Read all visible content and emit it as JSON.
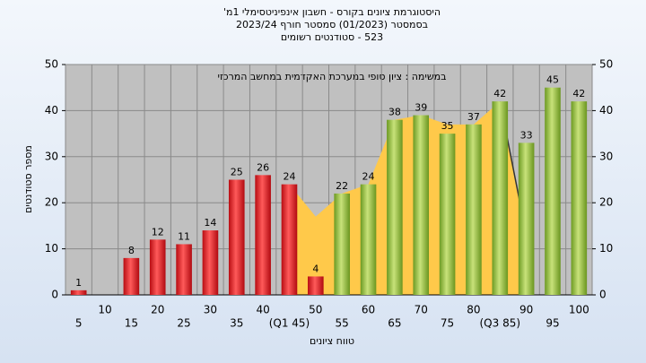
{
  "chart_data": {
    "type": "bar",
    "title": "היסטוגרמת ציונים בקורס - חשבון אינפיניטסימלי 1מ'",
    "subtitle": "בסמסטר (01/2023) סמסטר חורף 2023/24",
    "subtitle2": "523 - סטודנטים רשומים",
    "annotation": "במשימה : ציון סופי במערכת האקדמית במחשב המרכזי",
    "x_label": "טווח ציונים",
    "y_label": "מספר סטודנטים",
    "categories": [
      "5",
      "10",
      "15",
      "20",
      "25",
      "30",
      "35",
      "40",
      "(Q1 45)",
      "50",
      "55",
      "60",
      "65",
      "70",
      "75",
      "80",
      "(Q3 85)",
      "90",
      "95",
      "100"
    ],
    "values": [
      1,
      0,
      8,
      12,
      11,
      14,
      25,
      26,
      24,
      4,
      22,
      24,
      38,
      39,
      35,
      37,
      42,
      33,
      45,
      42
    ],
    "value_labels": [
      "1",
      null,
      "8",
      "12",
      "11",
      "14",
      "25",
      "26",
      "24",
      "4",
      "22",
      "24",
      "38",
      "39",
      "35",
      "37",
      "42",
      "33",
      "45",
      "42"
    ],
    "colors": [
      "red",
      "red",
      "red",
      "red",
      "red",
      "red",
      "red",
      "red",
      "red",
      "red",
      "green",
      "green",
      "green",
      "green",
      "green",
      "green",
      "green",
      "green",
      "green",
      "green"
    ],
    "area": {
      "color": "#ffc94a",
      "values": [
        null,
        null,
        null,
        null,
        null,
        null,
        null,
        null,
        24,
        17,
        22,
        24,
        38,
        39,
        37,
        37,
        42,
        13,
        null,
        null
      ]
    },
    "ylim": [
      0,
      50
    ],
    "yticks": [
      0,
      10,
      20,
      30,
      40,
      50
    ],
    "y2lim": [
      0,
      50
    ],
    "y2ticks": [
      0,
      10,
      20,
      30,
      40,
      50
    ],
    "grid": true
  }
}
